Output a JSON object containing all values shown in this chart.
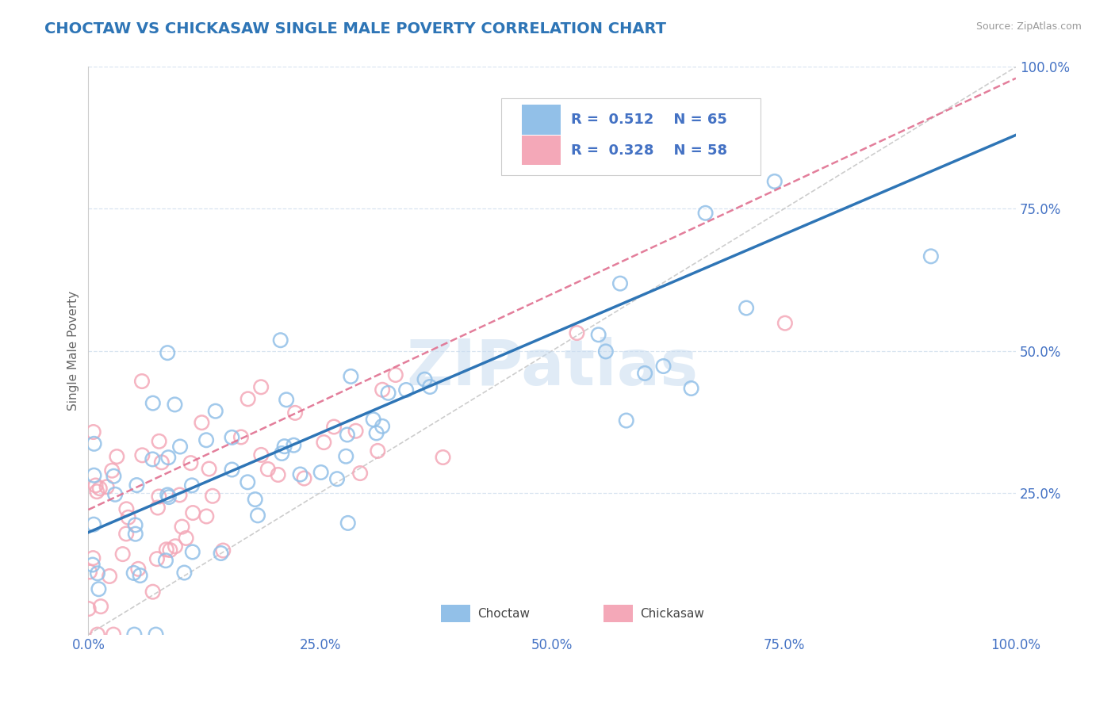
{
  "title": "CHOCTAW VS CHICKASAW SINGLE MALE POVERTY CORRELATION CHART",
  "source_text": "Source: ZipAtlas.com",
  "ylabel": "Single Male Poverty",
  "watermark": "ZIPatlas",
  "xlim": [
    0,
    1
  ],
  "ylim": [
    0,
    1
  ],
  "xticks": [
    0.0,
    0.25,
    0.5,
    0.75,
    1.0
  ],
  "xtick_labels": [
    "0.0%",
    "25.0%",
    "50.0%",
    "75.0%",
    "100.0%"
  ],
  "ytick_labels": [
    "25.0%",
    "50.0%",
    "75.0%",
    "100.0%"
  ],
  "yticks": [
    0.25,
    0.5,
    0.75,
    1.0
  ],
  "choctaw_R": 0.512,
  "choctaw_N": 65,
  "chickasaw_R": 0.328,
  "chickasaw_N": 58,
  "choctaw_color": "#92C0E8",
  "chickasaw_color": "#F4A8B8",
  "choctaw_line_color": "#2E75B6",
  "chickasaw_line_color": "#E07090",
  "diagonal_color": "#C8C8C8",
  "background_color": "#FFFFFF",
  "grid_color": "#D8E4F0",
  "title_color": "#2E75B6",
  "axis_label_color": "#666666",
  "tick_label_color": "#4472C4",
  "legend_R_color": "#4472C4"
}
